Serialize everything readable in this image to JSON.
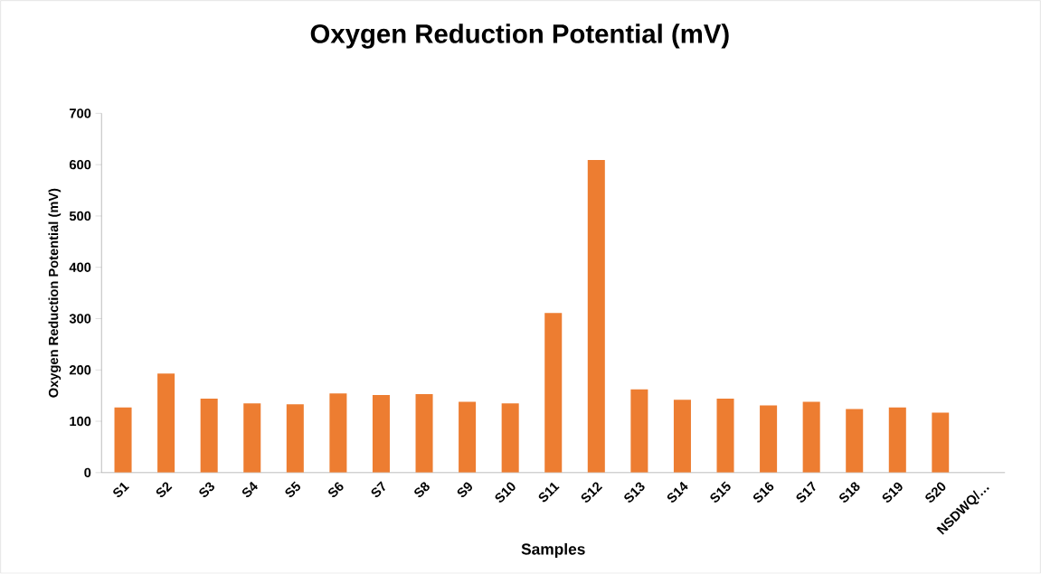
{
  "chart_data": {
    "type": "bar",
    "title": "Oxygen Reduction Potential (mV)",
    "xlabel": "Samples",
    "ylabel": "Oxygen Reduction Potential (mV)",
    "categories": [
      "S1",
      "S2",
      "S3",
      "S4",
      "S5",
      "S6",
      "S7",
      "S8",
      "S9",
      "S10",
      "S11",
      "S12",
      "S13",
      "S14",
      "S15",
      "S16",
      "S17",
      "S18",
      "S19",
      "S20",
      "NSDWQ/…"
    ],
    "values": [
      127,
      193,
      144,
      135,
      133,
      154,
      151,
      153,
      138,
      135,
      311,
      609,
      162,
      142,
      144,
      131,
      138,
      124,
      127,
      117,
      null
    ],
    "color": "#ed7d31",
    "ylim": [
      0,
      700
    ],
    "yticks": [
      0,
      100,
      200,
      300,
      400,
      500,
      600,
      700
    ],
    "grid": false
  }
}
